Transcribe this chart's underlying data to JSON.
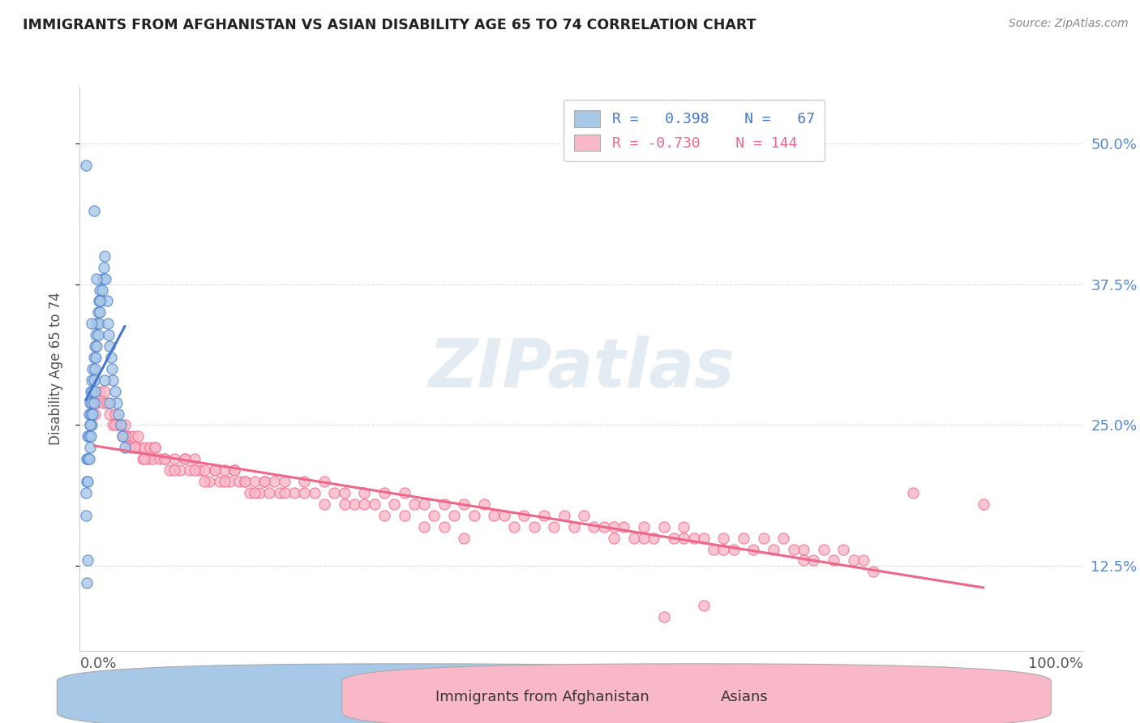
{
  "title": "IMMIGRANTS FROM AFGHANISTAN VS ASIAN DISABILITY AGE 65 TO 74 CORRELATION CHART",
  "source": "Source: ZipAtlas.com",
  "ylabel": "Disability Age 65 to 74",
  "ytick_labels": [
    "12.5%",
    "25.0%",
    "37.5%",
    "50.0%"
  ],
  "ytick_values": [
    0.125,
    0.25,
    0.375,
    0.5
  ],
  "xlim": [
    -0.005,
    1.0
  ],
  "ylim": [
    0.05,
    0.55
  ],
  "color_blue": "#A8C8E8",
  "color_pink": "#F9B8C8",
  "line_blue": "#4477CC",
  "line_pink": "#EE6688",
  "line_dashed_color": "#BBBBCC",
  "watermark_color": "#C8D8E8",
  "background_color": "#FFFFFF",
  "grid_color": "#DDDDDD",
  "right_label_color": "#5588CC",
  "afghanistan_x": [
    0.001,
    0.001,
    0.002,
    0.002,
    0.003,
    0.003,
    0.003,
    0.004,
    0.004,
    0.004,
    0.005,
    0.005,
    0.005,
    0.006,
    0.006,
    0.006,
    0.007,
    0.007,
    0.007,
    0.008,
    0.008,
    0.008,
    0.009,
    0.009,
    0.009,
    0.01,
    0.01,
    0.01,
    0.011,
    0.011,
    0.012,
    0.012,
    0.013,
    0.013,
    0.014,
    0.014,
    0.015,
    0.015,
    0.016,
    0.017,
    0.018,
    0.019,
    0.02,
    0.021,
    0.022,
    0.023,
    0.024,
    0.025,
    0.026,
    0.027,
    0.028,
    0.03,
    0.032,
    0.034,
    0.036,
    0.038,
    0.04,
    0.003,
    0.002,
    0.001,
    0.005,
    0.007,
    0.009,
    0.012,
    0.015,
    0.02,
    0.025
  ],
  "afghanistan_y": [
    0.19,
    0.17,
    0.22,
    0.2,
    0.24,
    0.22,
    0.2,
    0.26,
    0.24,
    0.22,
    0.27,
    0.25,
    0.23,
    0.28,
    0.26,
    0.24,
    0.29,
    0.27,
    0.25,
    0.3,
    0.28,
    0.26,
    0.31,
    0.29,
    0.27,
    0.32,
    0.3,
    0.28,
    0.33,
    0.31,
    0.34,
    0.32,
    0.35,
    0.33,
    0.36,
    0.34,
    0.37,
    0.35,
    0.36,
    0.37,
    0.38,
    0.39,
    0.4,
    0.38,
    0.36,
    0.34,
    0.33,
    0.32,
    0.31,
    0.3,
    0.29,
    0.28,
    0.27,
    0.26,
    0.25,
    0.24,
    0.23,
    0.13,
    0.11,
    0.48,
    0.25,
    0.34,
    0.44,
    0.38,
    0.36,
    0.29,
    0.27
  ],
  "asians_x": [
    0.01,
    0.012,
    0.015,
    0.018,
    0.02,
    0.022,
    0.025,
    0.028,
    0.03,
    0.033,
    0.035,
    0.038,
    0.04,
    0.043,
    0.045,
    0.048,
    0.05,
    0.053,
    0.055,
    0.058,
    0.06,
    0.063,
    0.065,
    0.068,
    0.07,
    0.075,
    0.08,
    0.085,
    0.09,
    0.095,
    0.1,
    0.105,
    0.11,
    0.115,
    0.12,
    0.125,
    0.13,
    0.135,
    0.14,
    0.145,
    0.15,
    0.155,
    0.16,
    0.165,
    0.17,
    0.175,
    0.18,
    0.185,
    0.19,
    0.195,
    0.2,
    0.21,
    0.22,
    0.23,
    0.24,
    0.25,
    0.26,
    0.27,
    0.28,
    0.29,
    0.3,
    0.31,
    0.32,
    0.33,
    0.34,
    0.35,
    0.36,
    0.37,
    0.38,
    0.39,
    0.4,
    0.41,
    0.42,
    0.43,
    0.44,
    0.45,
    0.46,
    0.47,
    0.48,
    0.49,
    0.5,
    0.51,
    0.52,
    0.53,
    0.54,
    0.55,
    0.56,
    0.57,
    0.58,
    0.59,
    0.6,
    0.61,
    0.62,
    0.63,
    0.64,
    0.65,
    0.66,
    0.67,
    0.68,
    0.69,
    0.7,
    0.71,
    0.72,
    0.73,
    0.74,
    0.75,
    0.76,
    0.77,
    0.78,
    0.79,
    0.03,
    0.04,
    0.05,
    0.06,
    0.07,
    0.08,
    0.09,
    0.1,
    0.11,
    0.12,
    0.13,
    0.14,
    0.15,
    0.16,
    0.17,
    0.18,
    0.2,
    0.22,
    0.24,
    0.26,
    0.28,
    0.3,
    0.32,
    0.34,
    0.36,
    0.38,
    0.53,
    0.56,
    0.6,
    0.64,
    0.72,
    0.83,
    0.9,
    0.62,
    0.58
  ],
  "asians_y": [
    0.26,
    0.27,
    0.28,
    0.27,
    0.28,
    0.27,
    0.26,
    0.25,
    0.26,
    0.25,
    0.25,
    0.24,
    0.25,
    0.24,
    0.23,
    0.24,
    0.23,
    0.24,
    0.23,
    0.22,
    0.23,
    0.22,
    0.23,
    0.22,
    0.23,
    0.22,
    0.22,
    0.21,
    0.22,
    0.21,
    0.22,
    0.21,
    0.22,
    0.21,
    0.21,
    0.2,
    0.21,
    0.2,
    0.21,
    0.2,
    0.21,
    0.2,
    0.2,
    0.19,
    0.2,
    0.19,
    0.2,
    0.19,
    0.2,
    0.19,
    0.2,
    0.19,
    0.2,
    0.19,
    0.2,
    0.19,
    0.19,
    0.18,
    0.19,
    0.18,
    0.19,
    0.18,
    0.19,
    0.18,
    0.18,
    0.17,
    0.18,
    0.17,
    0.18,
    0.17,
    0.18,
    0.17,
    0.17,
    0.16,
    0.17,
    0.16,
    0.17,
    0.16,
    0.17,
    0.16,
    0.17,
    0.16,
    0.16,
    0.15,
    0.16,
    0.15,
    0.16,
    0.15,
    0.16,
    0.15,
    0.16,
    0.15,
    0.15,
    0.14,
    0.15,
    0.14,
    0.15,
    0.14,
    0.15,
    0.14,
    0.15,
    0.14,
    0.14,
    0.13,
    0.14,
    0.13,
    0.14,
    0.13,
    0.13,
    0.12,
    0.25,
    0.24,
    0.23,
    0.22,
    0.23,
    0.22,
    0.21,
    0.22,
    0.21,
    0.2,
    0.21,
    0.2,
    0.21,
    0.2,
    0.19,
    0.2,
    0.19,
    0.19,
    0.18,
    0.18,
    0.18,
    0.17,
    0.17,
    0.16,
    0.16,
    0.15,
    0.16,
    0.15,
    0.15,
    0.14,
    0.13,
    0.19,
    0.18,
    0.09,
    0.08
  ]
}
